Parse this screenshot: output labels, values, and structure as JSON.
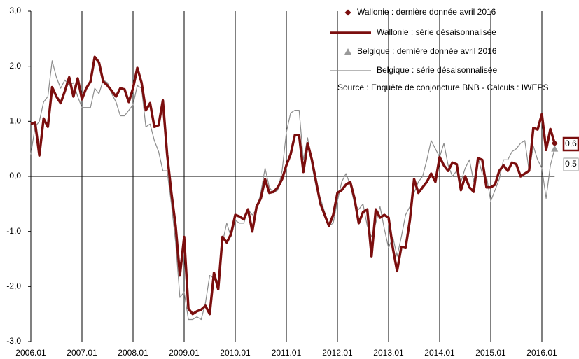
{
  "chart_data": {
    "type": "line",
    "categories": [
      "2006.01",
      null,
      null,
      null,
      null,
      null,
      null,
      null,
      null,
      null,
      null,
      null,
      "2007.01",
      null,
      null,
      null,
      null,
      null,
      null,
      null,
      null,
      null,
      null,
      null,
      "2008.01",
      null,
      null,
      null,
      null,
      null,
      null,
      null,
      null,
      null,
      null,
      null,
      "2009.01",
      null,
      null,
      null,
      null,
      null,
      null,
      null,
      null,
      null,
      null,
      null,
      "2010.01",
      null,
      null,
      null,
      null,
      null,
      null,
      null,
      null,
      null,
      null,
      null,
      "2011.01",
      null,
      null,
      null,
      null,
      null,
      null,
      null,
      null,
      null,
      null,
      null,
      "2012.01",
      null,
      null,
      null,
      null,
      null,
      null,
      null,
      null,
      null,
      null,
      null,
      "2013.01",
      null,
      null,
      null,
      null,
      null,
      null,
      null,
      null,
      null,
      null,
      null,
      "2014.01",
      null,
      null,
      null,
      null,
      null,
      null,
      null,
      null,
      null,
      null,
      null,
      "2015.01",
      null,
      null,
      null,
      null,
      null,
      null,
      null,
      null,
      null,
      null,
      null,
      "2016.01",
      null,
      null,
      null
    ],
    "series": [
      {
        "name": "Wallonie : série désaisonnalisée",
        "color": "#7b0e0e",
        "width": 3.5,
        "values": [
          0.95,
          0.98,
          0.38,
          1.05,
          0.9,
          1.62,
          1.45,
          1.33,
          1.55,
          1.8,
          1.45,
          1.78,
          1.4,
          1.6,
          1.72,
          2.17,
          2.07,
          1.72,
          1.65,
          1.55,
          1.45,
          1.6,
          1.58,
          1.35,
          1.6,
          1.97,
          1.7,
          1.2,
          1.33,
          0.9,
          0.93,
          1.38,
          0.4,
          -0.3,
          -0.9,
          -1.8,
          -1.1,
          -2.4,
          -2.5,
          -2.45,
          -2.42,
          -2.35,
          -2.5,
          -1.75,
          -2.05,
          -1.1,
          -1.2,
          -1.05,
          -0.7,
          -0.73,
          -0.78,
          -0.6,
          -1.0,
          -0.55,
          -0.4,
          -0.05,
          -0.3,
          -0.28,
          -0.2,
          -0.05,
          0.2,
          0.4,
          0.75,
          0.75,
          0.08,
          0.6,
          0.3,
          -0.1,
          -0.5,
          -0.7,
          -0.9,
          -0.7,
          -0.3,
          -0.25,
          -0.15,
          -0.1,
          -0.4,
          -0.85,
          -0.65,
          -0.6,
          -1.45,
          -0.6,
          -0.75,
          -0.7,
          -0.75,
          -1.3,
          -1.72,
          -1.28,
          -1.3,
          -0.8,
          -0.05,
          -0.3,
          -0.2,
          -0.1,
          0.05,
          -0.1,
          0.35,
          0.2,
          0.1,
          0.25,
          0.22,
          -0.25,
          0.0,
          -0.2,
          -0.28,
          0.33,
          0.3,
          -0.2,
          -0.2,
          -0.15,
          0.1,
          0.2,
          0.1,
          0.25,
          0.22,
          0.0,
          0.05,
          0.1,
          0.88,
          0.85,
          1.13,
          0.48,
          0.86,
          0.6
        ]
      },
      {
        "name": "Belgique : série désaisonnalisée",
        "color": "#8c8c8c",
        "width": 1.2,
        "values": [
          0.4,
          0.9,
          1.0,
          1.35,
          1.45,
          2.1,
          1.8,
          1.6,
          1.75,
          1.65,
          1.7,
          1.45,
          1.25,
          1.25,
          1.25,
          1.6,
          1.5,
          1.75,
          1.7,
          1.5,
          1.35,
          1.1,
          1.1,
          1.2,
          1.3,
          1.65,
          1.6,
          0.9,
          0.95,
          0.65,
          0.45,
          0.1,
          0.1,
          -0.5,
          -1.2,
          -2.2,
          -2.1,
          -2.6,
          -2.6,
          -2.55,
          -2.6,
          -2.3,
          -1.8,
          -1.85,
          -1.9,
          -1.2,
          -0.85,
          -1.1,
          -0.8,
          -0.85,
          -0.85,
          -0.6,
          -0.7,
          -0.6,
          -0.3,
          0.15,
          -0.2,
          -0.3,
          -0.25,
          0.1,
          0.8,
          1.15,
          1.2,
          1.2,
          0.3,
          0.7,
          0.2,
          -0.2,
          -0.4,
          -0.65,
          -0.9,
          -0.85,
          -0.45,
          -0.1,
          0.05,
          -0.15,
          -0.5,
          -0.6,
          -0.5,
          -0.9,
          -1.1,
          -0.85,
          -0.55,
          -0.95,
          -1.3,
          -1.1,
          -1.45,
          -1.1,
          -0.7,
          -0.55,
          -0.3,
          -0.1,
          0.0,
          0.3,
          0.65,
          0.5,
          0.35,
          0.6,
          0.2,
          0.0,
          0.1,
          -0.1,
          0.15,
          0.3,
          -0.1,
          0.35,
          0.05,
          0.0,
          -0.45,
          -0.25,
          -0.05,
          0.3,
          0.3,
          0.45,
          0.5,
          0.6,
          0.65,
          0.1,
          0.55,
          0.3,
          0.15,
          -0.4,
          0.2,
          0.5
        ]
      }
    ],
    "markers": [
      {
        "name": "Wallonie : dernière donnée avril 2016",
        "shape": "diamond",
        "color": "#7b0e0e",
        "value": 0.6,
        "value_label": "0,6"
      },
      {
        "name": "Belgique : dernière donnée avril 2016",
        "shape": "triangle",
        "color": "#999999",
        "value": 0.5,
        "value_label": "0,5"
      }
    ],
    "source": "Source : Enquête de conjoncture BNB - Calculs : IWEPS",
    "ylim": [
      -3,
      3
    ],
    "yticks": [
      {
        "value": -3,
        "label": "-3,0"
      },
      {
        "value": -2,
        "label": "-2,0"
      },
      {
        "value": -1,
        "label": "-1,0"
      },
      {
        "value": 0,
        "label": "0,0"
      },
      {
        "value": 1,
        "label": "1,0"
      },
      {
        "value": 2,
        "label": "2,0"
      },
      {
        "value": 3,
        "label": "3,0"
      }
    ]
  }
}
